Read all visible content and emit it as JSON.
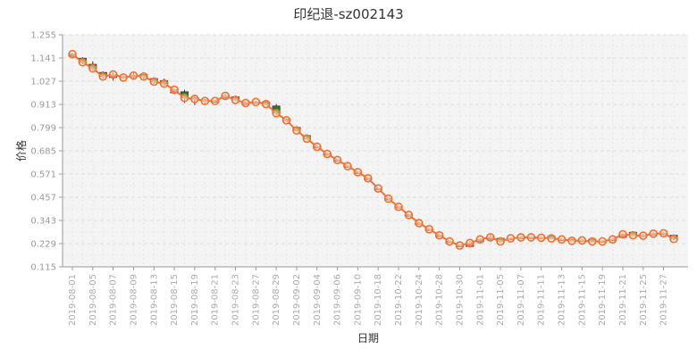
{
  "chart_data": {
    "type": "candlestick",
    "title": "印纪退-sz002143",
    "xlabel": "日期",
    "ylabel": "价格",
    "ylim": [
      0.115,
      1.255
    ],
    "yticks": [
      "0.115",
      "0.229",
      "0.343",
      "0.457",
      "0.571",
      "0.685",
      "0.799",
      "0.913",
      "1.027",
      "1.141",
      "1.255"
    ],
    "xtick_labels": [
      "2019-08-01",
      "2019-08-05",
      "2019-08-07",
      "2019-08-09",
      "2019-08-13",
      "2019-08-15",
      "2019-08-19",
      "2019-08-21",
      "2019-08-23",
      "2019-08-27",
      "2019-08-29",
      "2019-09-02",
      "2019-09-04",
      "2019-09-06",
      "2019-09-10",
      "2019-10-18",
      "2019-10-22",
      "2019-10-24",
      "2019-10-28",
      "2019-10-30",
      "2019-11-01",
      "2019-11-05",
      "2019-11-07",
      "2019-11-11",
      "2019-11-13",
      "2019-11-15",
      "2019-11-19",
      "2019-11-21",
      "2019-11-25",
      "2019-11-27"
    ],
    "grid": true,
    "colors": {
      "up": "#e01010",
      "down": "#1a8a1a",
      "line": "#f07030",
      "marker_fill": "#fde4d4",
      "background": "#f4f4f4"
    },
    "candles": [
      {
        "date": "2019-08-01",
        "open": 1.15,
        "close": 1.16,
        "high": 1.165,
        "low": 1.145
      },
      {
        "date": "2019-08-02",
        "open": 1.14,
        "close": 1.12,
        "high": 1.145,
        "low": 1.11
      },
      {
        "date": "2019-08-05",
        "open": 1.11,
        "close": 1.09,
        "high": 1.125,
        "low": 1.08
      },
      {
        "date": "2019-08-06",
        "open": 1.07,
        "close": 1.05,
        "high": 1.075,
        "low": 1.04
      },
      {
        "date": "2019-08-07",
        "open": 1.045,
        "close": 1.06,
        "high": 1.07,
        "low": 1.03
      },
      {
        "date": "2019-08-08",
        "open": 1.05,
        "close": 1.045,
        "high": 1.055,
        "low": 1.04
      },
      {
        "date": "2019-08-09",
        "open": 1.05,
        "close": 1.055,
        "high": 1.07,
        "low": 1.04
      },
      {
        "date": "2019-08-12",
        "open": 1.06,
        "close": 1.05,
        "high": 1.065,
        "low": 1.035
      },
      {
        "date": "2019-08-13",
        "open": 1.04,
        "close": 1.025,
        "high": 1.045,
        "low": 1.015
      },
      {
        "date": "2019-08-14",
        "open": 1.03,
        "close": 1.015,
        "high": 1.04,
        "low": 1.005
      },
      {
        "date": "2019-08-15",
        "open": 0.97,
        "close": 0.985,
        "high": 0.99,
        "low": 0.965
      },
      {
        "date": "2019-08-16",
        "open": 0.975,
        "close": 0.945,
        "high": 0.985,
        "low": 0.92
      },
      {
        "date": "2019-08-19",
        "open": 0.945,
        "close": 0.94,
        "high": 0.96,
        "low": 0.91
      },
      {
        "date": "2019-08-20",
        "open": 0.935,
        "close": 0.93,
        "high": 0.94,
        "low": 0.915
      },
      {
        "date": "2019-08-21",
        "open": 0.925,
        "close": 0.93,
        "high": 0.935,
        "low": 0.92
      },
      {
        "date": "2019-08-22",
        "open": 0.945,
        "close": 0.955,
        "high": 0.965,
        "low": 0.94
      },
      {
        "date": "2019-08-23",
        "open": 0.95,
        "close": 0.935,
        "high": 0.955,
        "low": 0.93
      },
      {
        "date": "2019-08-26",
        "open": 0.915,
        "close": 0.92,
        "high": 0.93,
        "low": 0.91
      },
      {
        "date": "2019-08-27",
        "open": 0.925,
        "close": 0.925,
        "high": 0.93,
        "low": 0.92
      },
      {
        "date": "2019-08-28",
        "open": 0.925,
        "close": 0.915,
        "high": 0.93,
        "low": 0.91
      },
      {
        "date": "2019-08-29",
        "open": 0.905,
        "close": 0.87,
        "high": 0.915,
        "low": 0.86
      },
      {
        "date": "2019-08-30",
        "open": 0.84,
        "close": 0.835,
        "high": 0.845,
        "low": 0.83
      },
      {
        "date": "2019-09-02",
        "open": 0.8,
        "close": 0.785,
        "high": 0.805,
        "low": 0.78
      },
      {
        "date": "2019-09-03",
        "open": 0.76,
        "close": 0.745,
        "high": 0.765,
        "low": 0.74
      },
      {
        "date": "2019-09-04",
        "open": 0.705,
        "close": 0.705,
        "high": 0.705,
        "low": 0.705
      },
      {
        "date": "2019-09-05",
        "open": 0.67,
        "close": 0.67,
        "high": 0.67,
        "low": 0.67
      },
      {
        "date": "2019-09-06",
        "open": 0.64,
        "close": 0.64,
        "high": 0.64,
        "low": 0.64
      },
      {
        "date": "2019-09-09",
        "open": 0.61,
        "close": 0.61,
        "high": 0.61,
        "low": 0.61
      },
      {
        "date": "2019-09-10",
        "open": 0.58,
        "close": 0.58,
        "high": 0.58,
        "low": 0.58
      },
      {
        "date": "2019-10-17",
        "open": 0.55,
        "close": 0.55,
        "high": 0.55,
        "low": 0.55
      },
      {
        "date": "2019-10-18",
        "open": 0.5,
        "close": 0.5,
        "high": 0.5,
        "low": 0.5
      },
      {
        "date": "2019-10-21",
        "open": 0.45,
        "close": 0.45,
        "high": 0.45,
        "low": 0.45
      },
      {
        "date": "2019-10-22",
        "open": 0.41,
        "close": 0.41,
        "high": 0.41,
        "low": 0.41
      },
      {
        "date": "2019-10-23",
        "open": 0.37,
        "close": 0.37,
        "high": 0.37,
        "low": 0.37
      },
      {
        "date": "2019-10-24",
        "open": 0.33,
        "close": 0.33,
        "high": 0.33,
        "low": 0.33
      },
      {
        "date": "2019-10-25",
        "open": 0.3,
        "close": 0.3,
        "high": 0.3,
        "low": 0.3
      },
      {
        "date": "2019-10-28",
        "open": 0.27,
        "close": 0.27,
        "high": 0.27,
        "low": 0.27
      },
      {
        "date": "2019-10-29",
        "open": 0.24,
        "close": 0.24,
        "high": 0.24,
        "low": 0.24
      },
      {
        "date": "2019-10-30",
        "open": 0.22,
        "close": 0.22,
        "high": 0.22,
        "low": 0.22
      },
      {
        "date": "2019-10-31",
        "open": 0.215,
        "close": 0.232,
        "high": 0.24,
        "low": 0.21
      },
      {
        "date": "2019-11-01",
        "open": 0.24,
        "close": 0.25,
        "high": 0.255,
        "low": 0.235
      },
      {
        "date": "2019-11-04",
        "open": 0.25,
        "close": 0.26,
        "high": 0.27,
        "low": 0.245
      },
      {
        "date": "2019-11-05",
        "open": 0.255,
        "close": 0.24,
        "high": 0.26,
        "low": 0.235
      },
      {
        "date": "2019-11-06",
        "open": 0.255,
        "close": 0.255,
        "high": 0.26,
        "low": 0.25
      },
      {
        "date": "2019-11-07",
        "open": 0.26,
        "close": 0.26,
        "high": 0.265,
        "low": 0.255
      },
      {
        "date": "2019-11-08",
        "open": 0.26,
        "close": 0.26,
        "high": 0.265,
        "low": 0.255
      },
      {
        "date": "2019-11-11",
        "open": 0.26,
        "close": 0.258,
        "high": 0.265,
        "low": 0.255
      },
      {
        "date": "2019-11-12",
        "open": 0.265,
        "close": 0.255,
        "high": 0.27,
        "low": 0.25
      },
      {
        "date": "2019-11-13",
        "open": 0.25,
        "close": 0.25,
        "high": 0.255,
        "low": 0.245
      },
      {
        "date": "2019-11-14",
        "open": 0.25,
        "close": 0.243,
        "high": 0.255,
        "low": 0.24
      },
      {
        "date": "2019-11-15",
        "open": 0.245,
        "close": 0.245,
        "high": 0.25,
        "low": 0.24
      },
      {
        "date": "2019-11-18",
        "open": 0.25,
        "close": 0.24,
        "high": 0.255,
        "low": 0.235
      },
      {
        "date": "2019-11-19",
        "open": 0.242,
        "close": 0.24,
        "high": 0.245,
        "low": 0.235
      },
      {
        "date": "2019-11-20",
        "open": 0.245,
        "close": 0.25,
        "high": 0.255,
        "low": 0.24
      },
      {
        "date": "2019-11-21",
        "open": 0.26,
        "close": 0.275,
        "high": 0.28,
        "low": 0.255
      },
      {
        "date": "2019-11-22",
        "open": 0.285,
        "close": 0.27,
        "high": 0.29,
        "low": 0.265
      },
      {
        "date": "2019-11-25",
        "open": 0.27,
        "close": 0.268,
        "high": 0.275,
        "low": 0.265
      },
      {
        "date": "2019-11-26",
        "open": 0.275,
        "close": 0.278,
        "high": 0.285,
        "low": 0.27
      },
      {
        "date": "2019-11-27",
        "open": 0.275,
        "close": 0.28,
        "high": 0.285,
        "low": 0.27
      },
      {
        "date": "2019-11-28",
        "open": 0.27,
        "close": 0.252,
        "high": 0.275,
        "low": 0.245
      }
    ]
  }
}
